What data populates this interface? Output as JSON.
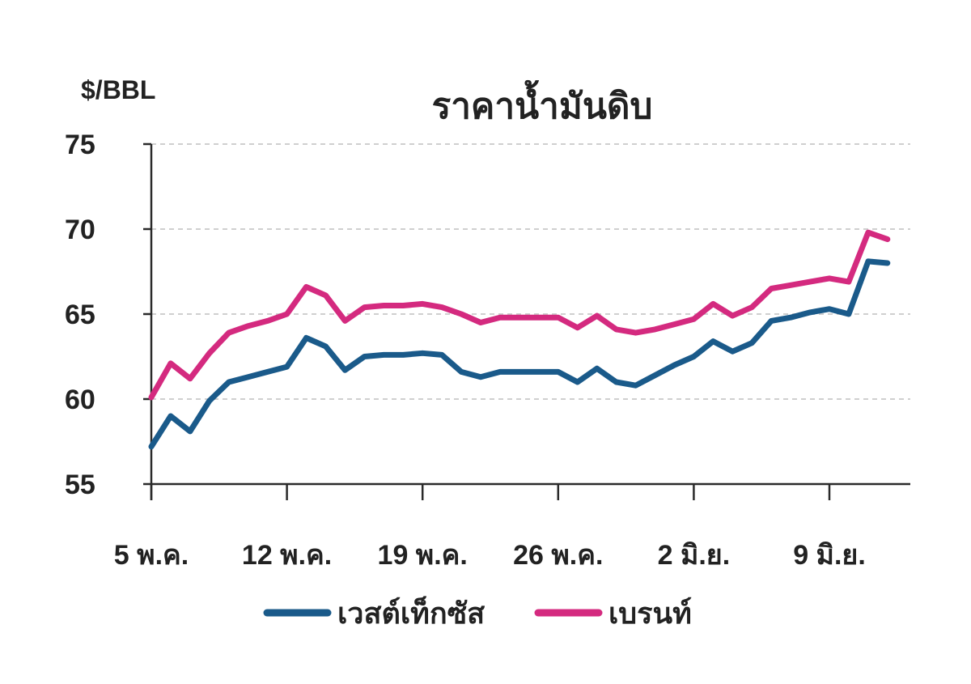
{
  "chart_data": {
    "type": "line",
    "title": "ราคาน้ำมันดิบ",
    "ylabel": "$/BBL",
    "xlabel": "",
    "ylim": [
      55,
      75
    ],
    "yticks": [
      55,
      60,
      65,
      70,
      75
    ],
    "x_ticks": [
      {
        "label": "5 พ.ค.",
        "x": 0
      },
      {
        "label": "12 พ.ค.",
        "x": 7
      },
      {
        "label": "19 พ.ค.",
        "x": 14
      },
      {
        "label": "26 พ.ค.",
        "x": 21
      },
      {
        "label": "2 มิ.ย.",
        "x": 28
      },
      {
        "label": "9 มิ.ย.",
        "x": 35
      }
    ],
    "xlim": [
      0,
      39
    ],
    "grid": true,
    "legend_position": "bottom",
    "series": [
      {
        "name": "เวสต์เท็กซัส",
        "color": "#1a5a8a",
        "points": [
          [
            0,
            57.2
          ],
          [
            1,
            59.0
          ],
          [
            2,
            58.1
          ],
          [
            3,
            59.9
          ],
          [
            4,
            61.0
          ],
          [
            5,
            61.3
          ],
          [
            6,
            61.6
          ],
          [
            7,
            61.9
          ],
          [
            8,
            63.6
          ],
          [
            9,
            63.1
          ],
          [
            10,
            61.7
          ],
          [
            11,
            62.5
          ],
          [
            12,
            62.6
          ],
          [
            13,
            62.6
          ],
          [
            14,
            62.7
          ],
          [
            15,
            62.6
          ],
          [
            16,
            61.6
          ],
          [
            17,
            61.3
          ],
          [
            18,
            61.6
          ],
          [
            19,
            61.6
          ],
          [
            20,
            61.6
          ],
          [
            21,
            61.6
          ],
          [
            22,
            61.0
          ],
          [
            23,
            61.8
          ],
          [
            24,
            61.0
          ],
          [
            25,
            60.8
          ],
          [
            26,
            61.4
          ],
          [
            27,
            62.0
          ],
          [
            28,
            62.5
          ],
          [
            29,
            63.4
          ],
          [
            30,
            62.8
          ],
          [
            31,
            63.3
          ],
          [
            32,
            64.6
          ],
          [
            33,
            64.8
          ],
          [
            34,
            65.1
          ],
          [
            35,
            65.3
          ],
          [
            36,
            65.0
          ],
          [
            37,
            68.1
          ],
          [
            38,
            68.0
          ]
        ]
      },
      {
        "name": "เบรนท์",
        "color": "#d42a7f",
        "points": [
          [
            0,
            60.1
          ],
          [
            1,
            62.1
          ],
          [
            2,
            61.2
          ],
          [
            3,
            62.7
          ],
          [
            4,
            63.9
          ],
          [
            5,
            64.3
          ],
          [
            6,
            64.6
          ],
          [
            7,
            65.0
          ],
          [
            8,
            66.6
          ],
          [
            9,
            66.1
          ],
          [
            10,
            64.6
          ],
          [
            11,
            65.4
          ],
          [
            12,
            65.5
          ],
          [
            13,
            65.5
          ],
          [
            14,
            65.6
          ],
          [
            15,
            65.4
          ],
          [
            16,
            65.0
          ],
          [
            17,
            64.5
          ],
          [
            18,
            64.8
          ],
          [
            19,
            64.8
          ],
          [
            20,
            64.8
          ],
          [
            21,
            64.8
          ],
          [
            22,
            64.2
          ],
          [
            23,
            64.9
          ],
          [
            24,
            64.1
          ],
          [
            25,
            63.9
          ],
          [
            26,
            64.1
          ],
          [
            27,
            64.4
          ],
          [
            28,
            64.7
          ],
          [
            29,
            65.6
          ],
          [
            30,
            64.9
          ],
          [
            31,
            65.4
          ],
          [
            32,
            66.5
          ],
          [
            33,
            66.7
          ],
          [
            34,
            66.9
          ],
          [
            35,
            67.1
          ],
          [
            36,
            66.9
          ],
          [
            37,
            69.8
          ],
          [
            38,
            69.4
          ]
        ]
      }
    ]
  }
}
